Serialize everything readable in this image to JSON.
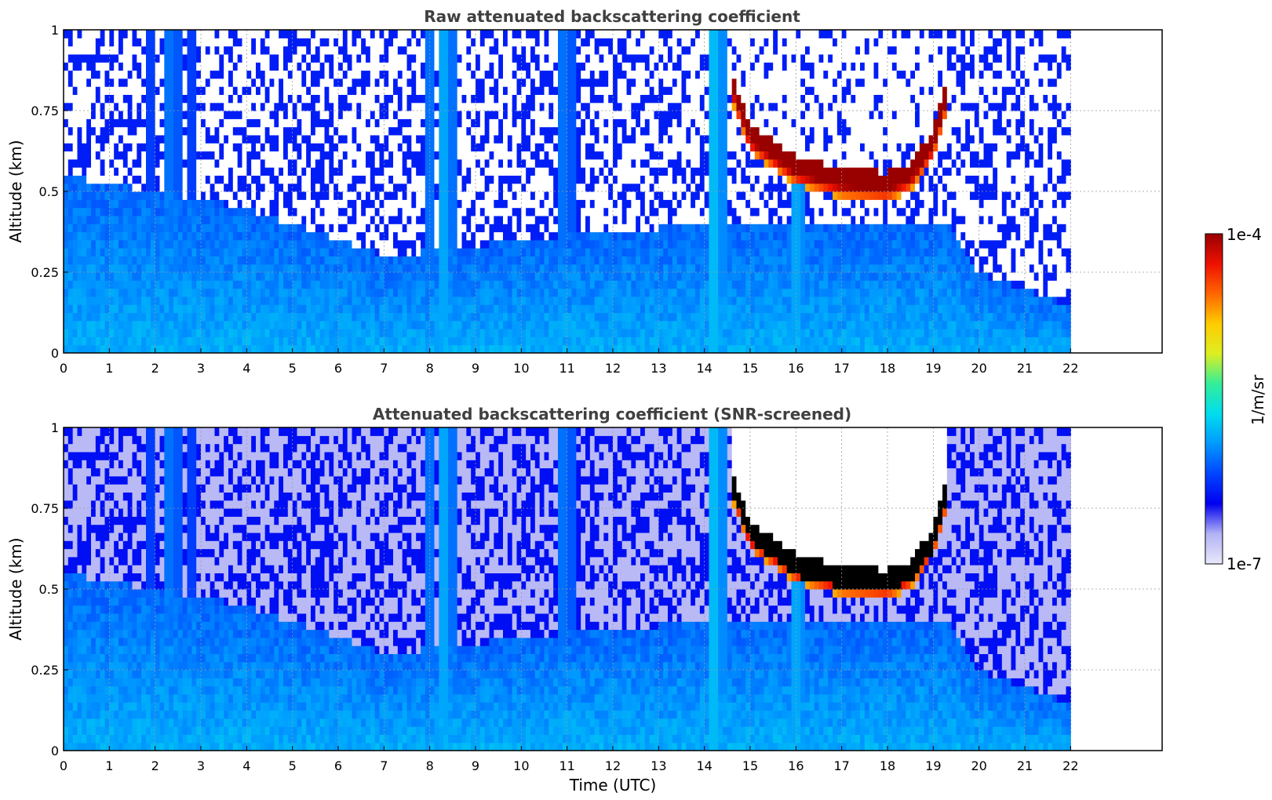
{
  "colorbar": {
    "label": "1/m/sr",
    "max_label": "1e-4",
    "min_label": "1e-7",
    "scale": "log",
    "range": [
      1e-07,
      0.0001
    ],
    "colormap": [
      "#e8e8fa",
      "#b3b3f5",
      "#0000f0",
      "#0044ff",
      "#0099ff",
      "#00ddee",
      "#33ee99",
      "#ddee22",
      "#ffcc00",
      "#ff6600",
      "#ee1100",
      "#990000"
    ]
  },
  "chart_data": [
    {
      "type": "heatmap",
      "title": "Raw attenuated backscattering coefficient",
      "xlabel": "",
      "ylabel": "Altitude (km)",
      "xlim": [
        0,
        24
      ],
      "ylim": [
        0,
        1
      ],
      "xticks": [
        "0",
        "1",
        "2",
        "3",
        "4",
        "5",
        "6",
        "7",
        "8",
        "9",
        "10",
        "11",
        "12",
        "13",
        "14",
        "15",
        "16",
        "17",
        "18",
        "19",
        "20",
        "21",
        "22"
      ],
      "yticks": [
        "0",
        "0.25",
        "0.5",
        "0.75",
        "1"
      ],
      "grid": true,
      "data_end_time": 22,
      "screened": false,
      "cloud_layer": {
        "start_time": 14.6,
        "end_time": 19.3,
        "base_km": [
          [
            14.6,
            0.78
          ],
          [
            15.0,
            0.62
          ],
          [
            16.0,
            0.52
          ],
          [
            17.0,
            0.48
          ],
          [
            18.0,
            0.47
          ],
          [
            18.5,
            0.5
          ],
          [
            19.0,
            0.6
          ],
          [
            19.3,
            0.75
          ]
        ],
        "thickness_km": 0.09
      },
      "vertical_streaks": [
        {
          "t": 1.9,
          "level": 0.45
        },
        {
          "t": 2.3,
          "level": 0.55
        },
        {
          "t": 2.5,
          "level": 0.5
        },
        {
          "t": 2.8,
          "level": 0.45
        },
        {
          "t": 8.0,
          "level": 0.55
        },
        {
          "t": 8.3,
          "level": 0.65
        },
        {
          "t": 8.5,
          "level": 0.55
        },
        {
          "t": 10.9,
          "level": 0.55
        },
        {
          "t": 11.1,
          "level": 0.5
        },
        {
          "t": 14.2,
          "level": 0.7
        },
        {
          "t": 14.4,
          "level": 0.6
        },
        {
          "t": 16.0,
          "level": 0.65
        },
        {
          "t": 16.1,
          "level": 0.6
        }
      ],
      "boundary_layer_km": [
        [
          0,
          0.55
        ],
        [
          4,
          0.45
        ],
        [
          7,
          0.3
        ],
        [
          10,
          0.35
        ],
        [
          14,
          0.4
        ],
        [
          19.3,
          0.4
        ],
        [
          20,
          0.25
        ],
        [
          22,
          0.15
        ]
      ]
    },
    {
      "type": "heatmap",
      "title": "Attenuated backscattering coefficient (SNR-screened)",
      "xlabel": "Time (UTC)",
      "ylabel": "Altitude (km)",
      "xlim": [
        0,
        24
      ],
      "ylim": [
        0,
        1
      ],
      "xticks": [
        "0",
        "1",
        "2",
        "3",
        "4",
        "5",
        "6",
        "7",
        "8",
        "9",
        "10",
        "11",
        "12",
        "13",
        "14",
        "15",
        "16",
        "17",
        "18",
        "19",
        "20",
        "21",
        "22"
      ],
      "yticks": [
        "0",
        "0.25",
        "0.5",
        "0.75",
        "1"
      ],
      "grid": true,
      "data_end_time": 22,
      "screened": true,
      "saturated_color": "#000000",
      "cloud_layer": {
        "start_time": 14.6,
        "end_time": 19.3,
        "base_km": [
          [
            14.6,
            0.78
          ],
          [
            15.0,
            0.62
          ],
          [
            16.0,
            0.52
          ],
          [
            17.0,
            0.48
          ],
          [
            18.0,
            0.47
          ],
          [
            18.5,
            0.5
          ],
          [
            19.0,
            0.6
          ],
          [
            19.3,
            0.75
          ]
        ],
        "thickness_km": 0.09
      },
      "vertical_streaks": [
        {
          "t": 1.9,
          "level": 0.45
        },
        {
          "t": 2.3,
          "level": 0.55
        },
        {
          "t": 2.5,
          "level": 0.5
        },
        {
          "t": 2.8,
          "level": 0.45
        },
        {
          "t": 8.0,
          "level": 0.55
        },
        {
          "t": 8.3,
          "level": 0.65
        },
        {
          "t": 8.5,
          "level": 0.55
        },
        {
          "t": 10.9,
          "level": 0.55
        },
        {
          "t": 11.1,
          "level": 0.5
        },
        {
          "t": 14.2,
          "level": 0.7
        },
        {
          "t": 14.4,
          "level": 0.6
        },
        {
          "t": 16.0,
          "level": 0.65
        },
        {
          "t": 16.1,
          "level": 0.6
        }
      ],
      "boundary_layer_km": [
        [
          0,
          0.55
        ],
        [
          4,
          0.45
        ],
        [
          7,
          0.3
        ],
        [
          10,
          0.35
        ],
        [
          14,
          0.4
        ],
        [
          19.3,
          0.4
        ],
        [
          20,
          0.25
        ],
        [
          22,
          0.15
        ]
      ]
    }
  ]
}
